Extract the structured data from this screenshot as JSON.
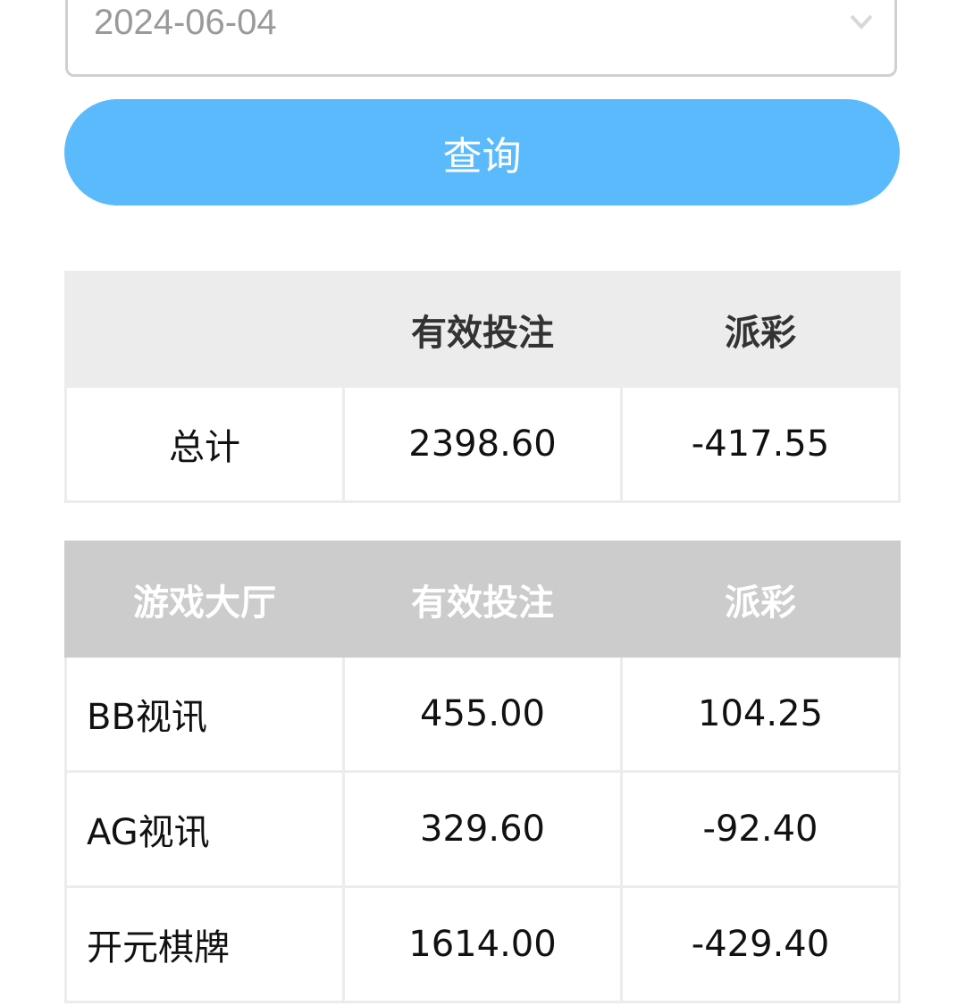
{
  "date_select": {
    "value": "2024-06-04",
    "icon": "chevron-down-icon"
  },
  "query_button": "查询",
  "summary": {
    "headers": [
      "",
      "有效投注",
      "派彩"
    ],
    "row": [
      "总计",
      "2398.60",
      "-417.55"
    ]
  },
  "detail": {
    "headers": [
      "游戏大厅",
      "有效投注",
      "派彩"
    ],
    "rows": [
      [
        "BB视讯",
        "455.00",
        "104.25"
      ],
      [
        "AG视讯",
        "329.60",
        "-92.40"
      ],
      [
        "开元棋牌",
        "1614.00",
        "-429.40"
      ]
    ]
  },
  "colors": {
    "accent": "#5bbafc",
    "summary_header": "#ececec",
    "detail_header": "#cccccc"
  }
}
